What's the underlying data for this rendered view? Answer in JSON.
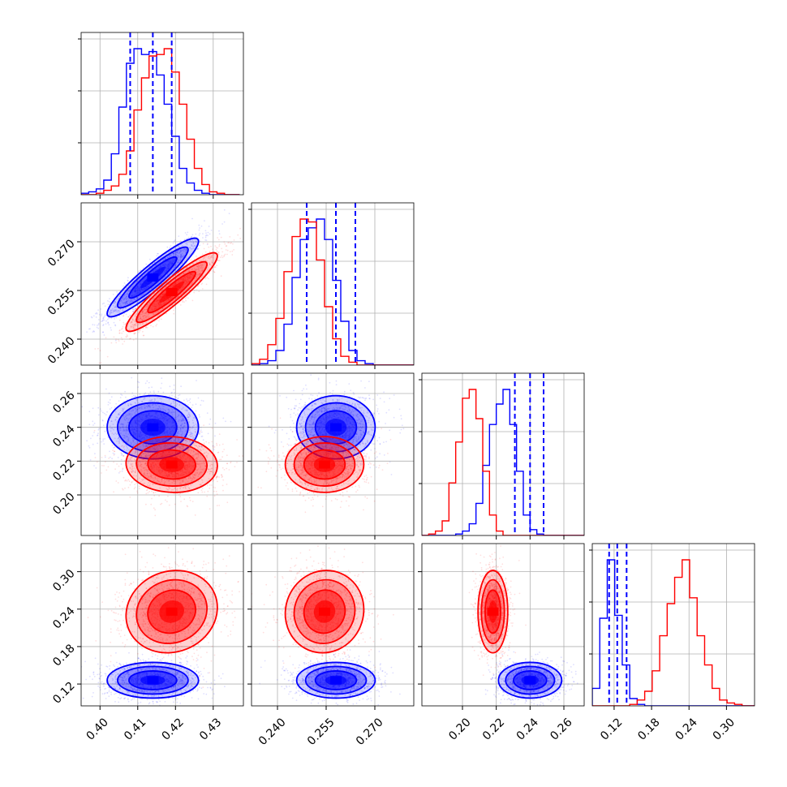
{
  "chart_data": {
    "type": "corner",
    "series": [
      {
        "name": "",
        "color": "#0000ff"
      },
      {
        "name": "",
        "color": "#ff0000"
      }
    ],
    "parameters": [
      {
        "range": [
          0.395,
          0.438
        ],
        "ticks": [
          0.4,
          0.41,
          0.42,
          0.43
        ],
        "tick_labels": [
          "0.40",
          "0.41",
          "0.42",
          "0.43"
        ]
      },
      {
        "range": [
          0.232,
          0.282
        ],
        "ticks": [
          0.24,
          0.255,
          0.27
        ],
        "tick_labels": [
          "0.240",
          "0.255",
          "0.270"
        ]
      },
      {
        "range": [
          0.176,
          0.272
        ],
        "ticks": [
          0.2,
          0.22,
          0.24,
          0.26
        ],
        "tick_labels": [
          "0.20",
          "0.22",
          "0.24",
          "0.26"
        ]
      },
      {
        "range": [
          0.085,
          0.345
        ],
        "ticks": [
          0.12,
          0.18,
          0.24,
          0.3
        ],
        "tick_labels": [
          "0.12",
          "0.18",
          "0.24",
          "0.30"
        ]
      }
    ],
    "quantiles_blue": [
      [
        0.408,
        0.414,
        0.419
      ],
      [
        0.249,
        0.258,
        0.264
      ],
      [
        0.231,
        0.24,
        0.248
      ],
      [
        0.112,
        0.125,
        0.14
      ]
    ],
    "blobs": [
      {
        "pair": [
          1,
          0
        ],
        "series": 0,
        "cx": 0.414,
        "cy": 0.259,
        "sx": 0.0055,
        "sy": 0.0055,
        "rho": 0.92
      },
      {
        "pair": [
          1,
          0
        ],
        "series": 1,
        "cx": 0.419,
        "cy": 0.2545,
        "sx": 0.0055,
        "sy": 0.0055,
        "rho": 0.92
      },
      {
        "pair": [
          2,
          0
        ],
        "series": 0,
        "cx": 0.414,
        "cy": 0.24,
        "sx": 0.0055,
        "sy": 0.0085,
        "rho": 0.0
      },
      {
        "pair": [
          2,
          0
        ],
        "series": 1,
        "cx": 0.419,
        "cy": 0.218,
        "sx": 0.0055,
        "sy": 0.0075,
        "rho": -0.05
      },
      {
        "pair": [
          2,
          1
        ],
        "series": 0,
        "cx": 0.258,
        "cy": 0.24,
        "sx": 0.0055,
        "sy": 0.0085,
        "rho": 0.0
      },
      {
        "pair": [
          2,
          1
        ],
        "series": 1,
        "cx": 0.2545,
        "cy": 0.218,
        "sx": 0.0055,
        "sy": 0.0075,
        "rho": 0.0
      },
      {
        "pair": [
          3,
          0
        ],
        "series": 0,
        "cx": 0.414,
        "cy": 0.126,
        "sx": 0.0055,
        "sy": 0.013,
        "rho": 0.0
      },
      {
        "pair": [
          3,
          0
        ],
        "series": 1,
        "cx": 0.419,
        "cy": 0.236,
        "sx": 0.0055,
        "sy": 0.03,
        "rho": 0.1
      },
      {
        "pair": [
          3,
          1
        ],
        "series": 0,
        "cx": 0.258,
        "cy": 0.126,
        "sx": 0.0055,
        "sy": 0.013,
        "rho": 0.0
      },
      {
        "pair": [
          3,
          1
        ],
        "series": 1,
        "cx": 0.2545,
        "cy": 0.236,
        "sx": 0.0055,
        "sy": 0.03,
        "rho": 0.05
      },
      {
        "pair": [
          3,
          2
        ],
        "series": 0,
        "cx": 0.24,
        "cy": 0.126,
        "sx": 0.0085,
        "sy": 0.013,
        "rho": 0.0
      },
      {
        "pair": [
          3,
          2
        ],
        "series": 1,
        "cx": 0.218,
        "cy": 0.236,
        "sx": 0.004,
        "sy": 0.03,
        "rho": 0.0
      }
    ],
    "histograms": [
      {
        "bin_width": 0.002,
        "bins_start": [
          0.395
        ],
        "blue": [
          1,
          2,
          4,
          10,
          28,
          60,
          90,
          100,
          96,
          98,
          82,
          62,
          40,
          18,
          8,
          3,
          1,
          0,
          0,
          0,
          0
        ],
        "red": [
          0,
          0,
          1,
          3,
          6,
          14,
          30,
          58,
          80,
          95,
          96,
          100,
          84,
          62,
          38,
          18,
          7,
          2,
          1,
          0,
          0
        ]
      },
      {
        "bin_width": 0.0025,
        "bins_start": [
          0.232
        ],
        "blue": [
          0,
          1,
          3,
          10,
          28,
          60,
          86,
          94,
          100,
          86,
          58,
          30,
          10,
          3,
          1,
          0,
          0,
          0,
          0,
          0
        ],
        "red": [
          1,
          4,
          14,
          32,
          64,
          88,
          100,
          98,
          72,
          40,
          18,
          6,
          2,
          0,
          0,
          0,
          0,
          0,
          0,
          0
        ]
      },
      {
        "bin_width": 0.004,
        "bins_start": [
          0.176
        ],
        "blue": [
          0,
          0,
          0,
          0,
          0,
          1,
          3,
          8,
          22,
          48,
          76,
          90,
          100,
          76,
          44,
          14,
          4,
          1,
          0,
          0,
          0,
          0,
          0,
          0
        ],
        "red": [
          0,
          1,
          3,
          10,
          36,
          64,
          94,
          100,
          80,
          44,
          14,
          3,
          0,
          0,
          0,
          0,
          0,
          0,
          0,
          0,
          0,
          0,
          0,
          0
        ]
      },
      {
        "bin_width": 0.012,
        "bins_start": [
          0.085
        ],
        "blue": [
          12,
          60,
          100,
          62,
          28,
          5,
          1,
          0,
          0,
          0,
          0,
          0,
          0,
          0,
          0,
          0,
          0,
          0,
          0,
          0,
          0,
          0
        ],
        "red": [
          0,
          0,
          0,
          0,
          0,
          1,
          4,
          10,
          24,
          48,
          70,
          88,
          100,
          74,
          48,
          28,
          12,
          4,
          2,
          1,
          0,
          0
        ]
      }
    ]
  }
}
